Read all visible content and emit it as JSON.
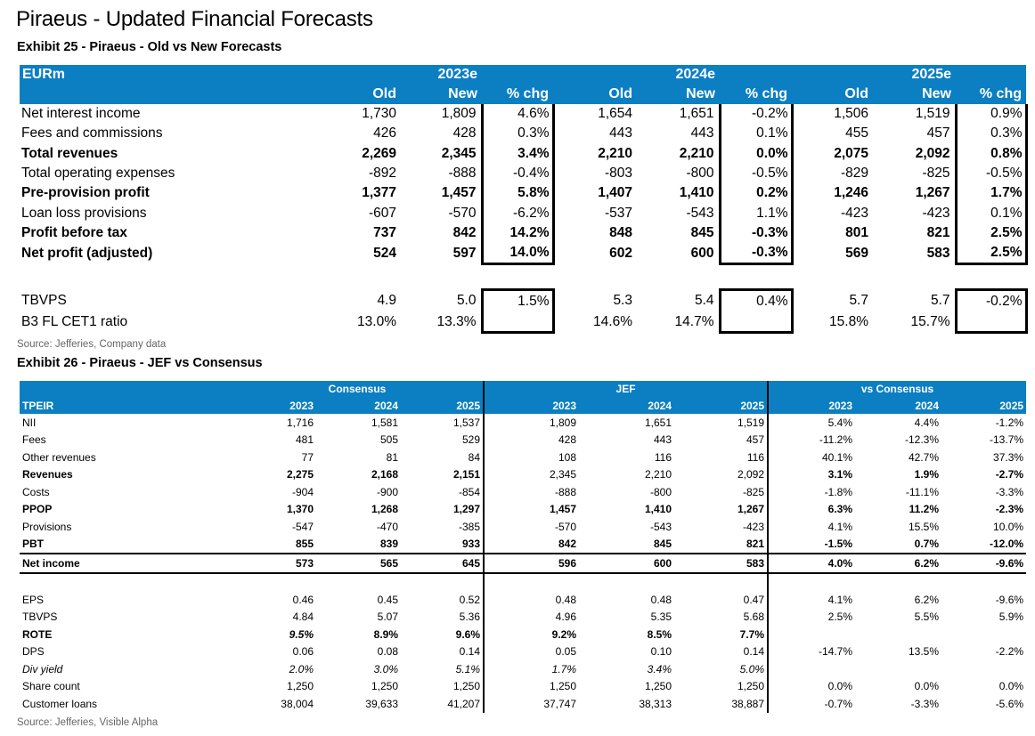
{
  "title": "Piraeus - Updated Financial Forecasts",
  "exhibit25": {
    "title": "Exhibit 25 - Piraeus - Old vs New Forecasts",
    "unit_label": "EURm",
    "years": [
      "2023e",
      "2024e",
      "2025e"
    ],
    "subheaders": [
      "Old",
      "New",
      "% chg",
      "Old",
      "New",
      "% chg",
      "Old",
      "New",
      "% chg"
    ],
    "rows": [
      {
        "label": "Net interest income",
        "bold": false,
        "values": [
          "1,730",
          "1,809",
          "4.6%",
          "1,654",
          "1,651",
          "-0.2%",
          "1,506",
          "1,519",
          "0.9%"
        ]
      },
      {
        "label": "Fees and commissions",
        "bold": false,
        "values": [
          "426",
          "428",
          "0.3%",
          "443",
          "443",
          "0.1%",
          "455",
          "457",
          "0.3%"
        ]
      },
      {
        "label": "Total revenues",
        "bold": true,
        "values": [
          "2,269",
          "2,345",
          "3.4%",
          "2,210",
          "2,210",
          "0.0%",
          "2,075",
          "2,092",
          "0.8%"
        ]
      },
      {
        "label": "Total operating expenses",
        "bold": false,
        "values": [
          "-892",
          "-888",
          "-0.4%",
          "-803",
          "-800",
          "-0.5%",
          "-829",
          "-825",
          "-0.5%"
        ]
      },
      {
        "label": "Pre-provision profit",
        "bold": true,
        "values": [
          "1,377",
          "1,457",
          "5.8%",
          "1,407",
          "1,410",
          "0.2%",
          "1,246",
          "1,267",
          "1.7%"
        ]
      },
      {
        "label": "Loan loss provisions",
        "bold": false,
        "values": [
          "-607",
          "-570",
          "-6.2%",
          "-537",
          "-543",
          "1.1%",
          "-423",
          "-423",
          "0.1%"
        ]
      },
      {
        "label": "Profit before tax",
        "bold": true,
        "values": [
          "737",
          "842",
          "14.2%",
          "848",
          "845",
          "-0.3%",
          "801",
          "821",
          "2.5%"
        ]
      },
      {
        "label": "Net profit (adjusted)",
        "bold": true,
        "values": [
          "524",
          "597",
          "14.0%",
          "602",
          "600",
          "-0.3%",
          "569",
          "583",
          "2.5%"
        ]
      }
    ],
    "rows2": [
      {
        "label": "TBVPS",
        "bold": false,
        "values": [
          "4.9",
          "5.0",
          "1.5%",
          "5.3",
          "5.4",
          "0.4%",
          "5.7",
          "5.7",
          "-0.2%"
        ]
      },
      {
        "label": "B3 FL CET1 ratio",
        "bold": false,
        "values": [
          "13.0%",
          "13.3%",
          "",
          "14.6%",
          "14.7%",
          "",
          "15.8%",
          "15.7%",
          ""
        ]
      }
    ],
    "source": "Source: Jefferies, Company data"
  },
  "exhibit26": {
    "title": "Exhibit 26 - Piraeus - JEF vs Consensus",
    "ticker_label": "TPEIR",
    "groups": [
      "Consensus",
      "JEF",
      "vs Consensus"
    ],
    "years": [
      "2023",
      "2024",
      "2025",
      "2023",
      "2024",
      "2025",
      "2023",
      "2024",
      "2025"
    ],
    "rows": [
      {
        "label": "NII",
        "style": "",
        "values": [
          "1,716",
          "1,581",
          "1,537",
          "1,809",
          "1,651",
          "1,519",
          "5.4%",
          "4.4%",
          "-1.2%"
        ]
      },
      {
        "label": "Fees",
        "style": "",
        "values": [
          "481",
          "505",
          "529",
          "428",
          "443",
          "457",
          "-11.2%",
          "-12.3%",
          "-13.7%"
        ]
      },
      {
        "label": "Other revenues",
        "style": "",
        "values": [
          "77",
          "81",
          "84",
          "108",
          "116",
          "116",
          "40.1%",
          "42.7%",
          "37.3%"
        ]
      },
      {
        "label": "Revenues",
        "style": "b",
        "cell_styles": [
          "b",
          "b",
          "b",
          "",
          "",
          "",
          "b",
          "b",
          "b"
        ],
        "values": [
          "2,275",
          "2,168",
          "2,151",
          "2,345",
          "2,210",
          "2,092",
          "3.1%",
          "1.9%",
          "-2.7%"
        ]
      },
      {
        "label": "Costs",
        "style": "",
        "values": [
          "-904",
          "-900",
          "-854",
          "-888",
          "-800",
          "-825",
          "-1.8%",
          "-11.1%",
          "-3.3%"
        ]
      },
      {
        "label": "PPOP",
        "style": "b",
        "values": [
          "1,370",
          "1,268",
          "1,297",
          "1,457",
          "1,410",
          "1,267",
          "6.3%",
          "11.2%",
          "-2.3%"
        ]
      },
      {
        "label": "Provisions",
        "style": "",
        "values": [
          "-547",
          "-470",
          "-385",
          "-570",
          "-543",
          "-423",
          "4.1%",
          "15.5%",
          "10.0%"
        ]
      },
      {
        "label": "PBT",
        "style": "b",
        "values": [
          "855",
          "839",
          "933",
          "842",
          "845",
          "821",
          "-1.5%",
          "0.7%",
          "-12.0%"
        ]
      },
      {
        "label": "Net income",
        "style": "b",
        "ruled": true,
        "values": [
          "573",
          "565",
          "645",
          "596",
          "600",
          "583",
          "4.0%",
          "6.2%",
          "-9.6%"
        ]
      },
      {
        "label": "",
        "style": "",
        "blank": true,
        "values": [
          "",
          "",
          "",
          "",
          "",
          "",
          "",
          "",
          ""
        ]
      },
      {
        "label": "EPS",
        "style": "",
        "values": [
          "0.46",
          "0.45",
          "0.52",
          "0.48",
          "0.48",
          "0.47",
          "4.1%",
          "6.2%",
          "-9.6%"
        ]
      },
      {
        "label": "TBVPS",
        "style": "",
        "values": [
          "4.84",
          "5.07",
          "5.36",
          "4.96",
          "5.35",
          "5.68",
          "2.5%",
          "5.5%",
          "5.9%"
        ]
      },
      {
        "label": "ROTE",
        "style": "b",
        "cell_styles": [
          "b i",
          "b",
          "b",
          "b",
          "b",
          "b",
          "",
          "",
          ""
        ],
        "values": [
          "9.5%",
          "8.9%",
          "9.6%",
          "9.2%",
          "8.5%",
          "7.7%",
          "",
          "",
          ""
        ]
      },
      {
        "label": "DPS",
        "style": "",
        "values": [
          "0.06",
          "0.08",
          "0.14",
          "0.05",
          "0.10",
          "0.14",
          "-14.7%",
          "13.5%",
          "-2.2%"
        ]
      },
      {
        "label": "Div yield",
        "style": "i",
        "values": [
          "2.0%",
          "3.0%",
          "5.1%",
          "1.7%",
          "3.4%",
          "5.0%",
          "",
          "",
          ""
        ]
      },
      {
        "label": "Share count",
        "style": "",
        "values": [
          "1,250",
          "1,250",
          "1,250",
          "1,250",
          "1,250",
          "1,250",
          "0.0%",
          "0.0%",
          "0.0%"
        ]
      },
      {
        "label": "Customer loans",
        "style": "",
        "values": [
          "38,004",
          "39,633",
          "41,207",
          "37,747",
          "38,313",
          "38,887",
          "-0.7%",
          "-3.3%",
          "-5.6%"
        ]
      }
    ],
    "source": "Source: Jefferies, Visible Alpha"
  },
  "colors": {
    "header_bg": "#0b7fc2",
    "header_text": "#ffffff",
    "source_text": "#666666"
  }
}
